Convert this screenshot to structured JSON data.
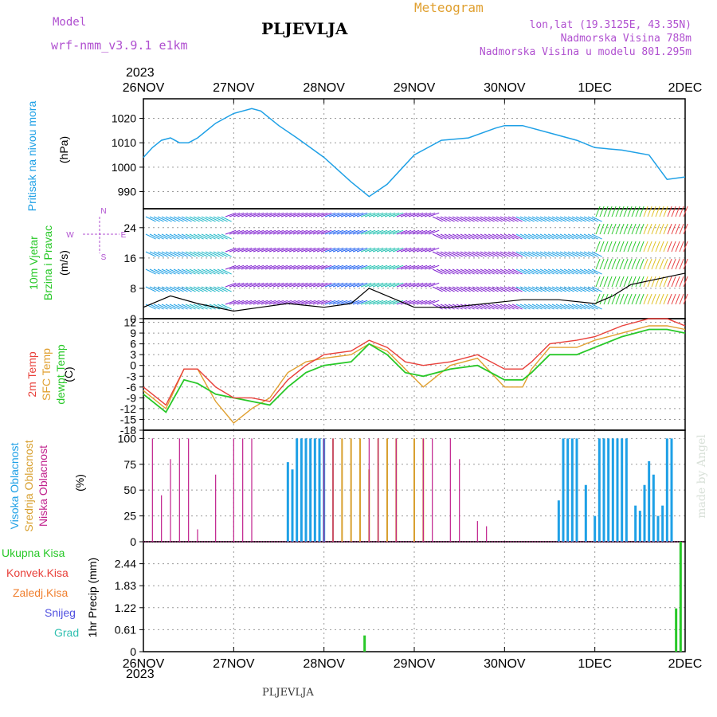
{
  "header": {
    "model_label": "Model",
    "model_name": "wrf-nmm_v3.9.1 e1km",
    "station": "PLJEVLJA",
    "meteogram": "Meteogram",
    "lonlat": "lon,lat (19.3125E, 43.35N)",
    "altitude": "Nadmorska Visina 788m",
    "model_altitude": "Nadmorska Visina u modelu 801.295m",
    "year_top": "2023",
    "year_bottom": "2023",
    "footer_station": "PLJEVLJA",
    "watermark": "made by Angel"
  },
  "colors": {
    "pressure": "#1ea0e6",
    "temp2m": "#e8403a",
    "sfc": "#e0a030",
    "dewpt": "#28c828",
    "high": "#1ea0e6",
    "mid": "#d8a030",
    "low": "#c0208c",
    "precip": "#28c828",
    "grid": "#999999"
  },
  "chart_data": [
    {
      "type": "line",
      "title": "Pritisak na nivou mora",
      "ylabel": "(hPa)",
      "x_ticks": [
        "26NOV",
        "27NOV",
        "28NOV",
        "29NOV",
        "30NOV",
        "1DEC",
        "2DEC"
      ],
      "ylim": [
        983,
        1028
      ],
      "yticks": [
        "1020",
        "1010",
        "1000",
        "990"
      ],
      "series": [
        {
          "name": "Pritisak na nivou mora",
          "x": [
            0,
            0.1,
            0.2,
            0.3,
            0.4,
            0.5,
            0.6,
            0.8,
            1.0,
            1.2,
            1.3,
            1.5,
            1.7,
            2.0,
            2.3,
            2.5,
            2.7,
            3.0,
            3.3,
            3.6,
            3.9,
            4.0,
            4.2,
            4.5,
            4.8,
            5.0,
            5.3,
            5.6,
            5.8,
            6.0
          ],
          "y": [
            1004,
            1008,
            1011,
            1012,
            1010,
            1010,
            1012,
            1018,
            1022,
            1024,
            1023,
            1017,
            1012,
            1004,
            994,
            988,
            993,
            1005,
            1011,
            1012,
            1016,
            1017,
            1017,
            1014,
            1011,
            1008,
            1007,
            1005,
            995,
            996
          ]
        }
      ]
    },
    {
      "type": "line",
      "title": "10m Vjetar Brzina i Pravac",
      "ylabel": "(m/s)",
      "ylim": [
        0,
        29
      ],
      "yticks": [
        "24",
        "16",
        "8",
        "0"
      ],
      "legend_compass": {
        "n": "N",
        "s": "S",
        "e": "E",
        "w": "W"
      },
      "series": [
        {
          "name": "Brzina",
          "x": [
            0,
            0.3,
            0.6,
            1.0,
            1.3,
            1.6,
            2.0,
            2.3,
            2.5,
            2.8,
            3.0,
            3.4,
            3.8,
            4.2,
            4.6,
            5.0,
            5.2,
            5.4,
            5.6,
            5.8,
            6.0
          ],
          "y": [
            3,
            6,
            4,
            2,
            3,
            4,
            3,
            4,
            8,
            5,
            3,
            3,
            4,
            5,
            5,
            4,
            6,
            9,
            10,
            11,
            12
          ]
        }
      ]
    },
    {
      "type": "line",
      "title": "2m Temp / SFC Temp / dewpt Temp",
      "ylabel": "(C)",
      "ylim": [
        -18,
        13
      ],
      "yticks": [
        "12",
        "9",
        "6",
        "3",
        "0",
        "-3",
        "-6",
        "-9",
        "-12",
        "-15",
        "-18"
      ],
      "series": [
        {
          "name": "2m Temp",
          "x": [
            0,
            0.25,
            0.45,
            0.6,
            0.8,
            1.0,
            1.2,
            1.4,
            1.6,
            1.8,
            2.0,
            2.3,
            2.5,
            2.7,
            2.9,
            3.1,
            3.4,
            3.7,
            4.0,
            4.2,
            4.3,
            4.5,
            4.8,
            5.0,
            5.3,
            5.6,
            5.8,
            6.0
          ],
          "y": [
            -6,
            -11,
            -1,
            -1,
            -6,
            -9,
            -9,
            -10,
            -4,
            0,
            3,
            4,
            7,
            5,
            1,
            0,
            1,
            3,
            -1,
            -1,
            1,
            6,
            7,
            8,
            11,
            13,
            13,
            11
          ]
        },
        {
          "name": "SFC Temp",
          "x": [
            0,
            0.25,
            0.45,
            0.6,
            0.8,
            1.0,
            1.2,
            1.4,
            1.6,
            1.8,
            2.0,
            2.3,
            2.5,
            2.7,
            2.9,
            3.1,
            3.4,
            3.7,
            4.0,
            4.2,
            4.3,
            4.5,
            4.8,
            5.0,
            5.3,
            5.6,
            5.8,
            6.0
          ],
          "y": [
            -7,
            -12,
            -1,
            -1,
            -10,
            -16,
            -12,
            -9,
            -2,
            1,
            2,
            3,
            6,
            4,
            -1,
            -6,
            0,
            2,
            -6,
            -6,
            -1,
            5,
            5,
            7,
            9,
            11,
            11,
            10
          ]
        },
        {
          "name": "dewpt Temp",
          "x": [
            0,
            0.25,
            0.45,
            0.6,
            0.8,
            1.0,
            1.2,
            1.4,
            1.6,
            1.8,
            2.0,
            2.3,
            2.5,
            2.7,
            2.9,
            3.1,
            3.4,
            3.7,
            4.0,
            4.2,
            4.3,
            4.5,
            4.8,
            5.0,
            5.3,
            5.6,
            5.8,
            6.0
          ],
          "y": [
            -8,
            -13,
            -4,
            -5,
            -8,
            -9,
            -10,
            -11,
            -6,
            -2,
            0,
            1,
            6,
            3,
            -2,
            -3,
            -1,
            0,
            -4,
            -4,
            -2,
            3,
            3,
            5,
            8,
            10,
            10,
            9
          ]
        }
      ]
    },
    {
      "type": "bar",
      "title": "Visoka Oblacnost / Srednja Oblacnost / Niska Oblacnost",
      "ylabel": "(%)",
      "ylim": [
        0,
        100
      ],
      "yticks": [
        "100",
        "75",
        "50",
        "25",
        "0"
      ],
      "series": [
        {
          "name": "Niska Oblacnost",
          "x": [
            0.1,
            0.2,
            0.3,
            0.4,
            0.5,
            0.6,
            0.8,
            1.0,
            1.1,
            1.2,
            2.0,
            2.1,
            2.5,
            2.6,
            2.8,
            3.1,
            3.2,
            3.4,
            3.5,
            3.7,
            3.8
          ],
          "y": [
            100,
            45,
            80,
            100,
            100,
            12,
            65,
            100,
            100,
            100,
            100,
            100,
            100,
            100,
            100,
            100,
            100,
            100,
            80,
            20,
            15
          ]
        },
        {
          "name": "Srednja Oblacnost",
          "x": [
            1.7,
            1.8,
            1.9,
            2.0,
            2.1,
            2.2,
            2.3,
            2.4,
            2.5,
            2.6,
            2.7,
            2.8,
            3.0,
            3.1,
            5.1,
            5.2,
            5.5,
            5.8
          ],
          "y": [
            70,
            100,
            100,
            100,
            100,
            100,
            100,
            100,
            70,
            100,
            100,
            100,
            100,
            100,
            100,
            70,
            25,
            35
          ]
        },
        {
          "name": "Visoka Oblacnost",
          "x": [
            1.6,
            1.65,
            1.7,
            1.75,
            1.8,
            1.85,
            1.9,
            1.95,
            2.0,
            4.6,
            4.65,
            4.7,
            4.75,
            4.8,
            4.9,
            5.0,
            5.05,
            5.1,
            5.15,
            5.2,
            5.25,
            5.3,
            5.35,
            5.45,
            5.5,
            5.55,
            5.6,
            5.65,
            5.7,
            5.75,
            5.8,
            5.85
          ],
          "y": [
            77,
            70,
            100,
            100,
            100,
            100,
            100,
            100,
            100,
            40,
            100,
            100,
            100,
            100,
            55,
            25,
            100,
            100,
            100,
            100,
            100,
            100,
            100,
            35,
            30,
            55,
            78,
            65,
            25,
            35,
            100,
            100
          ]
        }
      ]
    },
    {
      "type": "bar",
      "title": "1hr Precip",
      "ylabel": "1hr Precip (mm)",
      "ylim": [
        0,
        3.05
      ],
      "yticks": [
        "2.44",
        "1.83",
        "1.22",
        "0.61",
        "0"
      ],
      "legend": [
        "Ukupna Kisa",
        "Konvek.Kisa",
        "Zaledj.Kisa",
        "Snijeg",
        "Grad"
      ],
      "series": [
        {
          "name": "Ukupna Kisa",
          "x": [
            2.45,
            5.9,
            5.95
          ],
          "y": [
            0.45,
            1.2,
            3.05
          ]
        }
      ]
    }
  ],
  "labels": {
    "pressure_title": "Pritisak na nivou mora",
    "wind_title1": "10m Vjetar",
    "wind_title2": "Brzina i Pravac",
    "temp_2m": "2m Temp",
    "temp_sfc": "SFC Temp",
    "temp_dew": "dewpt Temp",
    "cloud_high": "Visoka Oblacnost",
    "cloud_mid": "Srednja Oblacnost",
    "cloud_low": "Niska Oblacnost",
    "precip_total": "Ukupna Kisa",
    "precip_konv": "Konvek.Kisa",
    "precip_zal": "Zaledj.Kisa",
    "precip_snow": "Snijeg",
    "precip_grad": "Grad"
  }
}
